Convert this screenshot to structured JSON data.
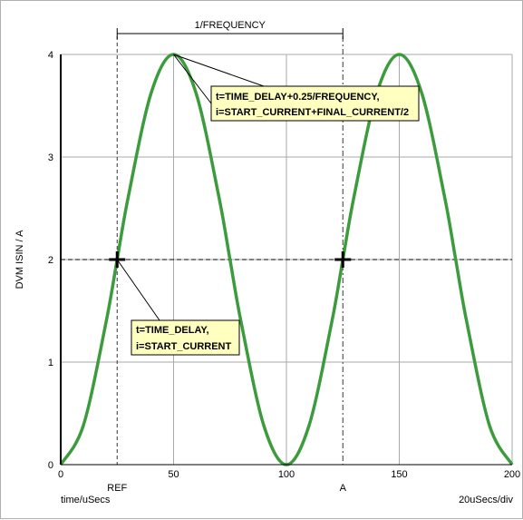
{
  "chart_data": {
    "type": "line",
    "ylabel": "DVM ISIN / A",
    "xlabel": "time/uSecs",
    "time_per_div": "20uSecs/div",
    "xlim": [
      0,
      200
    ],
    "ylim": [
      0,
      4
    ],
    "x_ticks": [
      "0",
      "50",
      "100",
      "150",
      "200"
    ],
    "y_ticks": [
      "0",
      "1",
      "2",
      "3",
      "4"
    ],
    "grid": true,
    "series": [
      {
        "color": "#3c9b3c",
        "x": [
          0,
          10,
          20,
          25,
          30,
          40,
          50,
          60,
          70,
          75,
          80,
          90,
          100,
          110,
          120,
          125,
          130,
          140,
          150,
          160,
          170,
          175,
          180,
          190,
          200
        ],
        "y": [
          0.0,
          0.38,
          1.38,
          2.0,
          2.62,
          3.62,
          4.0,
          3.62,
          2.62,
          2.0,
          1.38,
          0.38,
          0.0,
          0.38,
          1.38,
          2.0,
          2.62,
          3.62,
          4.0,
          3.62,
          2.62,
          2.0,
          1.38,
          0.38,
          0.0
        ]
      }
    ],
    "reference_level": 2,
    "markers": [
      {
        "label": "REF",
        "x": 25
      },
      {
        "label": "A",
        "x": 125
      }
    ],
    "interval_label": "1/FREQUENCY",
    "annotations": [
      {
        "lines": [
          "t=TIME_DELAY+0.25/FREQUENCY,",
          "i=START_CURRENT+FINAL_CURRENT/2"
        ],
        "point": [
          50,
          4
        ]
      },
      {
        "lines": [
          "t=TIME_DELAY,",
          "i=START_CURRENT"
        ],
        "point": [
          25,
          2
        ]
      }
    ]
  }
}
